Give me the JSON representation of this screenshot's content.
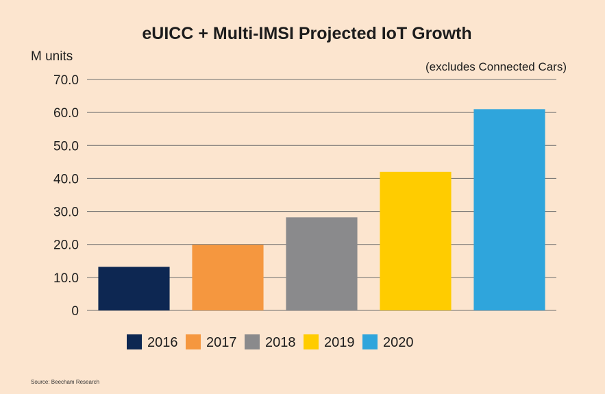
{
  "chart_data": {
    "type": "bar",
    "title": "eUICC + Multi-IMSI Projected IoT Growth",
    "ylabel": "M units",
    "xlabel": "",
    "note": "(excludes Connected Cars)",
    "source": "Source: Beecham Research",
    "categories": [
      "2016",
      "2017",
      "2018",
      "2019",
      "2020"
    ],
    "values": [
      13.2,
      19.9,
      28.2,
      42.0,
      61.0
    ],
    "colors": [
      "#0d2752",
      "#f5973f",
      "#8a8a8c",
      "#ffcc00",
      "#2fa5dc"
    ],
    "ylim": [
      0,
      70
    ],
    "yticks": [
      0,
      10,
      20,
      30,
      40,
      50,
      60,
      70
    ],
    "ytick_labels": [
      "0",
      "10.0",
      "20.0",
      "30.0",
      "40.0",
      "50.0",
      "60.0",
      "70.0"
    ],
    "grid": true,
    "legend_position": "bottom",
    "legend": [
      "2016",
      "2017",
      "2018",
      "2019",
      "2020"
    ]
  }
}
